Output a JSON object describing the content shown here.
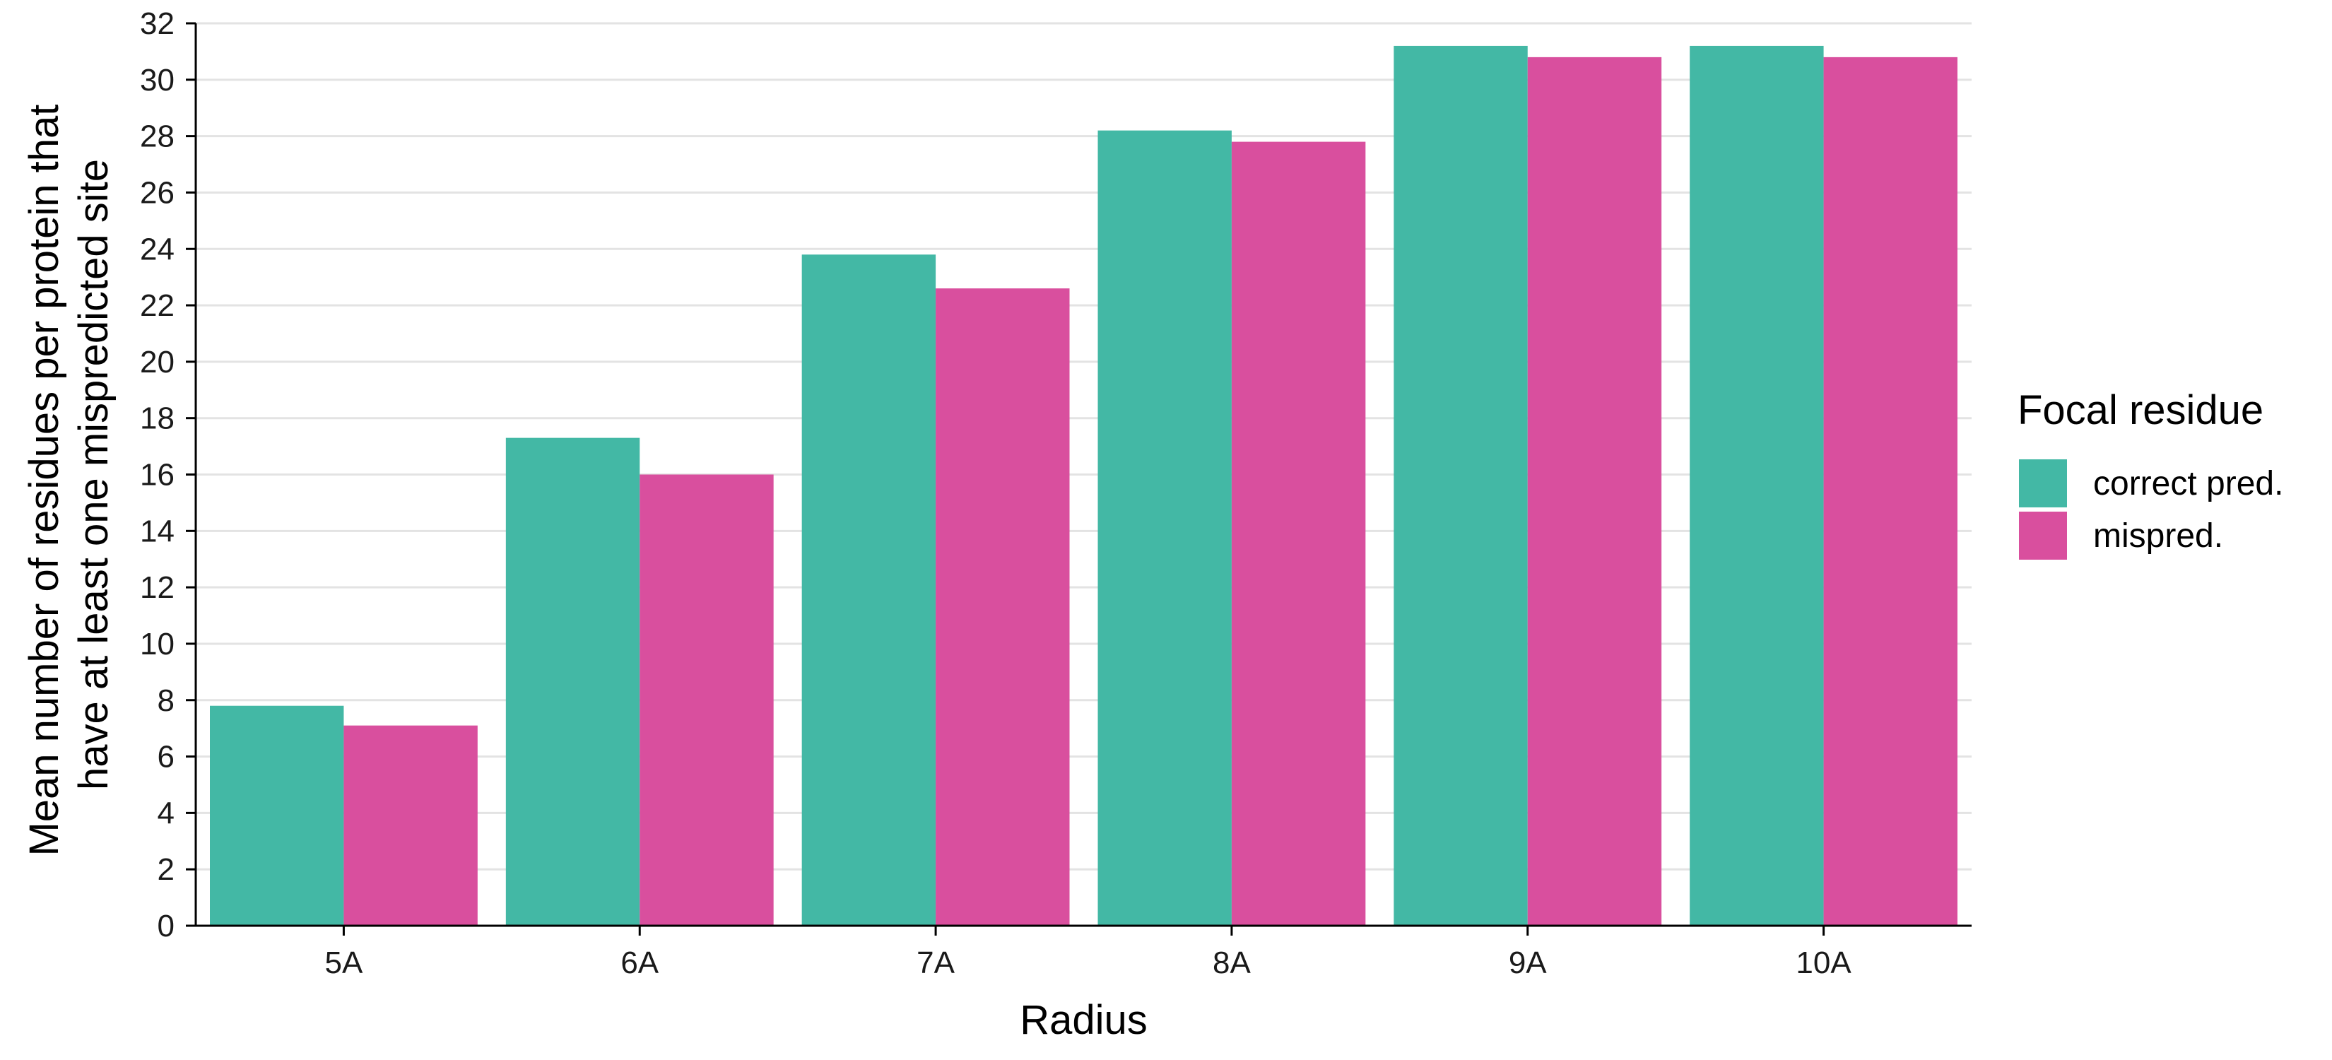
{
  "chart_data": {
    "type": "bar",
    "xlabel": "Radius",
    "ylabel": [
      "Mean number of residues per protein that",
      "have at least one mispredicted site"
    ],
    "categories": [
      "5A",
      "6A",
      "7A",
      "8A",
      "9A",
      "10A"
    ],
    "series": [
      {
        "name": "correct pred.",
        "color": "#43B8A5",
        "values": [
          7.8,
          17.3,
          23.8,
          28.2,
          31.2,
          31.2
        ]
      },
      {
        "name": "mispred.",
        "color": "#D94F9E",
        "values": [
          7.1,
          16.0,
          22.6,
          27.8,
          30.8,
          30.8
        ]
      }
    ],
    "ylim": [
      0,
      32
    ],
    "yticks": [
      0,
      2,
      4,
      6,
      8,
      10,
      12,
      14,
      16,
      18,
      20,
      22,
      24,
      26,
      28,
      30,
      32
    ],
    "grid": "horizontal",
    "legend": {
      "title": "Focal residue",
      "position": "right"
    }
  }
}
